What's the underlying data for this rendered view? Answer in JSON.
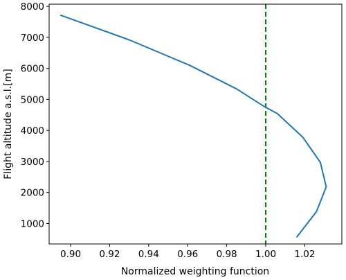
{
  "chart_data": {
    "type": "line",
    "title": "",
    "xlabel": "Normalized weighting function",
    "ylabel": "Flight altitude a.s.l.[m]",
    "xlim": [
      0.889,
      1.039
    ],
    "ylim": [
      340,
      8070
    ],
    "xticks": [
      0.9,
      0.92,
      0.94,
      0.96,
      0.98,
      1.0,
      1.02
    ],
    "xtick_labels": [
      "0.90",
      "0.92",
      "0.94",
      "0.96",
      "0.98",
      "1.00",
      "1.02"
    ],
    "yticks": [
      1000,
      2000,
      3000,
      4000,
      5000,
      6000,
      7000,
      8000
    ],
    "ytick_labels": [
      "1000",
      "2000",
      "3000",
      "4000",
      "5000",
      "6000",
      "7000",
      "8000"
    ],
    "grid": false,
    "series": [
      {
        "color": "#1f77b4",
        "x": [
          1.016,
          1.026,
          1.031,
          1.028,
          1.019,
          1.006,
          0.999,
          0.985,
          0.961,
          0.93,
          0.895
        ],
        "y": [
          570,
          1380,
          2180,
          2970,
          3780,
          4540,
          4780,
          5340,
          6100,
          6920,
          7710
        ]
      }
    ],
    "reference_line": {
      "orientation": "vertical",
      "x": 1.0,
      "color": "#008000",
      "style": "dashed"
    }
  }
}
